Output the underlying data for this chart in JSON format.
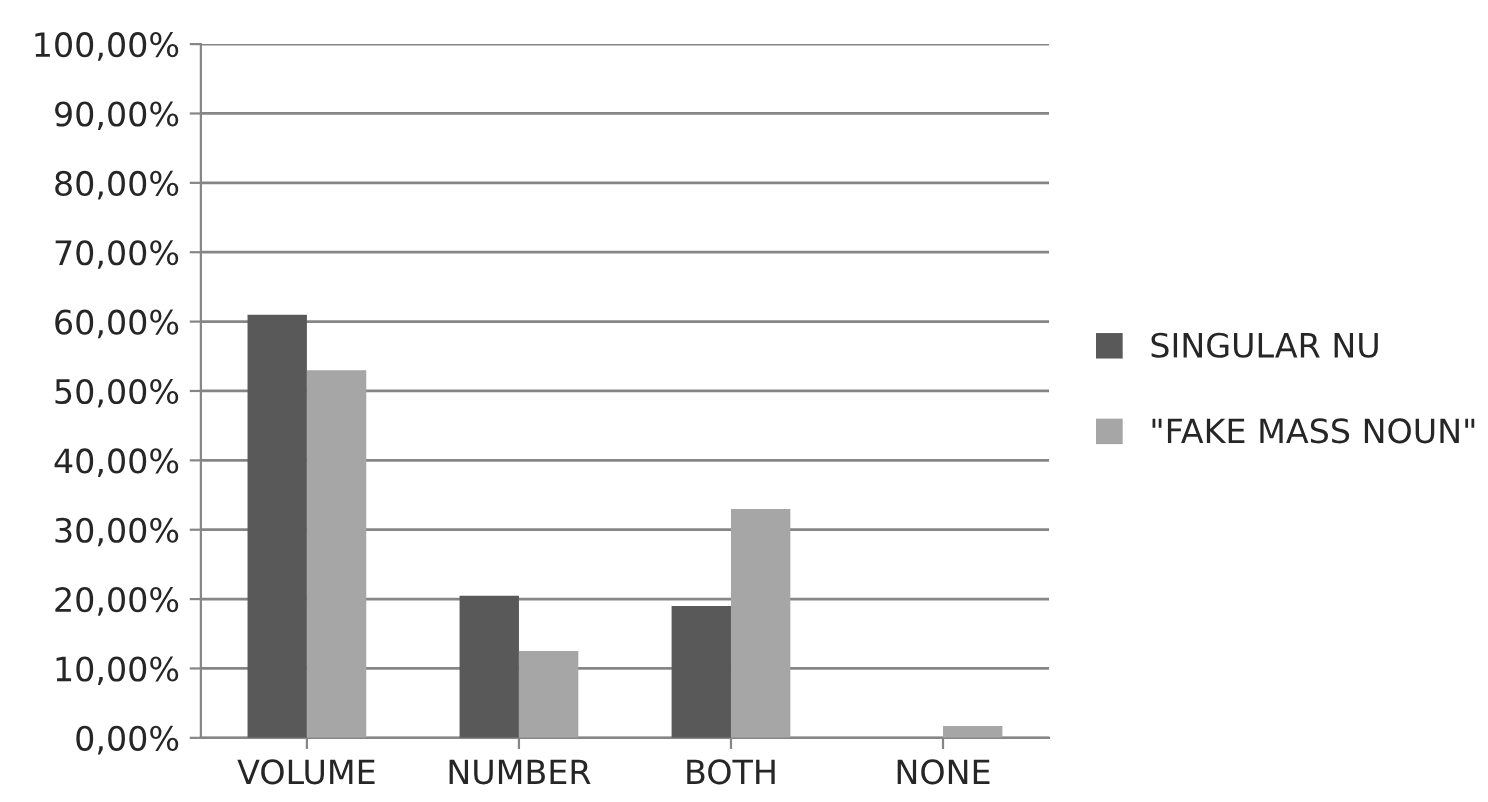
{
  "chart_data": {
    "type": "bar",
    "categories": [
      "VOLUME",
      "NUMBER",
      "BOTH",
      "NONE"
    ],
    "series": [
      {
        "name": "SINGULAR NU",
        "color": "#595959",
        "values": [
          61,
          20.5,
          19,
          0
        ]
      },
      {
        "name": "\"FAKE MASS NOUN\"",
        "color": "#a6a6a6",
        "values": [
          53,
          12.5,
          33,
          1.7
        ]
      }
    ],
    "ylim": [
      0,
      100
    ],
    "yticks": [
      {
        "value": 0,
        "label": "0,00%"
      },
      {
        "value": 10,
        "label": "10,00%"
      },
      {
        "value": 20,
        "label": "20,00%"
      },
      {
        "value": 30,
        "label": "30,00%"
      },
      {
        "value": 40,
        "label": "40,00%"
      },
      {
        "value": 50,
        "label": "50,00%"
      },
      {
        "value": 60,
        "label": "60,00%"
      },
      {
        "value": 70,
        "label": "70,00%"
      },
      {
        "value": 80,
        "label": "80,00%"
      },
      {
        "value": 90,
        "label": "90,00%"
      },
      {
        "value": 100,
        "label": "100,00%"
      }
    ],
    "grid": "y",
    "legend": "right"
  }
}
